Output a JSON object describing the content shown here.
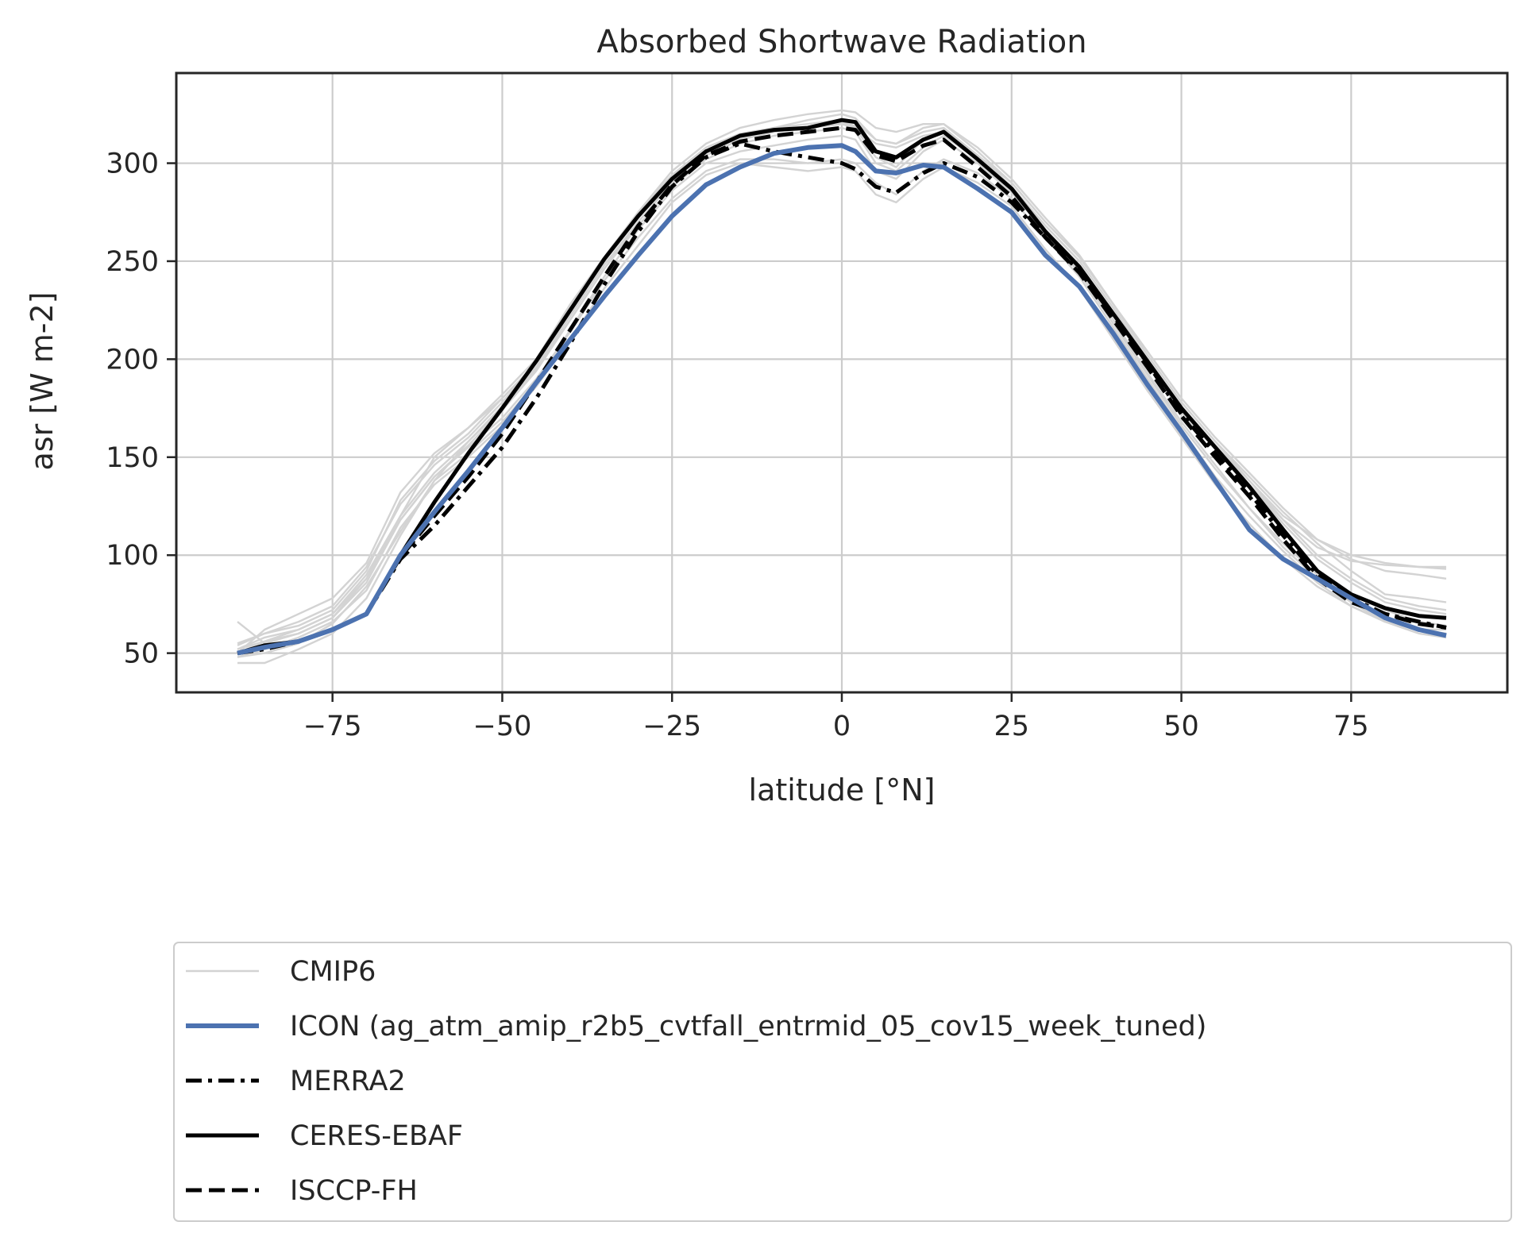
{
  "chart_data": {
    "type": "line",
    "title": "Absorbed Shortwave Radiation",
    "xlabel": "latitude [°N]",
    "ylabel": "asr [W m-2]",
    "xlim": [
      -98,
      98
    ],
    "ylim": [
      30,
      346
    ],
    "xticks": [
      -75,
      -50,
      -25,
      0,
      25,
      50,
      75
    ],
    "xtick_labels": [
      "−75",
      "−50",
      "−25",
      "0",
      "25",
      "50",
      "75"
    ],
    "yticks": [
      50,
      100,
      150,
      200,
      250,
      300
    ],
    "ytick_labels": [
      "50",
      "100",
      "150",
      "200",
      "250",
      "300"
    ],
    "grid": true,
    "legend_position": "below",
    "cmip6_legend_label": "CMIP6",
    "x": [
      -89,
      -85,
      -80,
      -75,
      -70,
      -65,
      -60,
      -55,
      -50,
      -45,
      -40,
      -35,
      -30,
      -25,
      -20,
      -15,
      -10,
      -5,
      0,
      2,
      5,
      8,
      12,
      15,
      20,
      25,
      30,
      35,
      40,
      45,
      50,
      55,
      60,
      65,
      70,
      75,
      80,
      85,
      89
    ],
    "series": [
      {
        "name": "ICON (ag_atm_amip_r2b5_cvtfall_entrmid_05_cov15_week_tuned)",
        "style": "solid",
        "color": "#4c72b0",
        "width": 6,
        "values": [
          50,
          53,
          56,
          62,
          70,
          100,
          122,
          143,
          165,
          188,
          210,
          232,
          253,
          273,
          289,
          298,
          305,
          308,
          309,
          306,
          296,
          295,
          299,
          298,
          287,
          275,
          253,
          237,
          213,
          187,
          163,
          138,
          113,
          98,
          88,
          78,
          68,
          62,
          59
        ]
      },
      {
        "name": "MERRA2",
        "style": "dashdot",
        "color": "#000000",
        "width": 5,
        "values": [
          50,
          52,
          56,
          62,
          70,
          98,
          115,
          135,
          155,
          180,
          208,
          238,
          265,
          288,
          303,
          310,
          306,
          303,
          300,
          297,
          288,
          285,
          295,
          300,
          293,
          280,
          262,
          245,
          222,
          198,
          172,
          152,
          132,
          110,
          90,
          78,
          70,
          66,
          63
        ]
      },
      {
        "name": "CERES-EBAF",
        "style": "solid",
        "color": "#000000",
        "width": 5,
        "values": [
          50,
          54,
          56,
          62,
          70,
          100,
          127,
          152,
          175,
          199,
          225,
          251,
          273,
          292,
          306,
          314,
          317,
          318,
          322,
          321,
          306,
          303,
          312,
          316,
          302,
          287,
          265,
          247,
          223,
          199,
          175,
          155,
          135,
          113,
          92,
          80,
          73,
          69,
          68
        ]
      },
      {
        "name": "ISCCP-FH",
        "style": "dashed",
        "color": "#000000",
        "width": 5,
        "values": [
          50,
          53,
          56,
          62,
          70,
          99,
          120,
          140,
          162,
          188,
          215,
          242,
          268,
          289,
          304,
          311,
          314,
          316,
          318,
          317,
          304,
          301,
          309,
          312,
          298,
          283,
          262,
          244,
          220,
          196,
          171,
          150,
          130,
          108,
          88,
          76,
          70,
          65,
          63
        ]
      }
    ],
    "cmip6_series": [
      [
        66,
        55,
        60,
        68,
        88,
        120,
        150,
        165,
        182,
        200,
        228,
        252,
        275,
        294,
        308,
        315,
        318,
        320,
        322,
        321,
        312,
        310,
        316,
        318,
        304,
        288,
        266,
        248,
        222,
        197,
        173,
        154,
        136,
        118,
        104,
        97,
        95,
        94,
        93
      ],
      [
        48,
        50,
        55,
        65,
        84,
        112,
        138,
        158,
        175,
        196,
        222,
        248,
        270,
        290,
        304,
        312,
        317,
        318,
        320,
        318,
        303,
        298,
        312,
        317,
        304,
        288,
        268,
        250,
        226,
        200,
        176,
        156,
        138,
        120,
        108,
        100,
        96,
        94,
        94
      ],
      [
        55,
        60,
        64,
        72,
        92,
        128,
        148,
        162,
        180,
        198,
        226,
        250,
        272,
        292,
        306,
        313,
        318,
        322,
        325,
        323,
        312,
        310,
        318,
        320,
        306,
        290,
        270,
        252,
        228,
        202,
        178,
        158,
        140,
        122,
        106,
        92,
        80,
        78,
        76
      ],
      [
        45,
        45,
        52,
        60,
        78,
        110,
        138,
        152,
        168,
        188,
        215,
        242,
        266,
        286,
        300,
        306,
        309,
        312,
        314,
        312,
        296,
        292,
        306,
        312,
        300,
        285,
        265,
        245,
        220,
        193,
        168,
        146,
        124,
        104,
        88,
        76,
        66,
        60,
        58
      ],
      [
        50,
        62,
        70,
        78,
        96,
        132,
        152,
        165,
        180,
        198,
        224,
        250,
        275,
        296,
        310,
        318,
        322,
        325,
        327,
        326,
        318,
        316,
        320,
        320,
        308,
        292,
        272,
        253,
        228,
        202,
        178,
        158,
        138,
        118,
        100,
        88,
        78,
        74,
        72
      ],
      [
        52,
        58,
        62,
        70,
        90,
        120,
        142,
        158,
        176,
        195,
        220,
        246,
        268,
        288,
        302,
        310,
        314,
        316,
        318,
        316,
        300,
        296,
        308,
        314,
        302,
        286,
        264,
        244,
        218,
        192,
        166,
        144,
        124,
        106,
        90,
        80,
        72,
        66,
        64
      ],
      [
        50,
        56,
        60,
        68,
        86,
        118,
        140,
        155,
        170,
        190,
        214,
        240,
        262,
        282,
        296,
        302,
        302,
        300,
        302,
        300,
        290,
        284,
        296,
        302,
        295,
        282,
        262,
        242,
        216,
        190,
        164,
        140,
        120,
        102,
        86,
        74,
        66,
        62,
        60
      ],
      [
        54,
        60,
        66,
        74,
        94,
        126,
        146,
        160,
        178,
        198,
        224,
        250,
        272,
        292,
        306,
        314,
        318,
        318,
        320,
        318,
        310,
        308,
        314,
        316,
        304,
        288,
        268,
        250,
        226,
        200,
        176,
        156,
        136,
        116,
        98,
        86,
        76,
        72,
        70
      ],
      [
        48,
        52,
        58,
        66,
        82,
        114,
        136,
        150,
        166,
        186,
        210,
        236,
        258,
        280,
        294,
        300,
        298,
        296,
        298,
        296,
        284,
        280,
        292,
        298,
        290,
        278,
        256,
        236,
        210,
        184,
        160,
        136,
        116,
        98,
        84,
        74,
        66,
        62,
        62
      ],
      [
        52,
        56,
        62,
        70,
        88,
        118,
        140,
        156,
        174,
        194,
        220,
        246,
        270,
        290,
        304,
        312,
        316,
        318,
        321,
        319,
        306,
        302,
        312,
        316,
        304,
        290,
        270,
        252,
        228,
        204,
        180,
        160,
        142,
        124,
        108,
        98,
        92,
        90,
        88
      ]
    ]
  }
}
